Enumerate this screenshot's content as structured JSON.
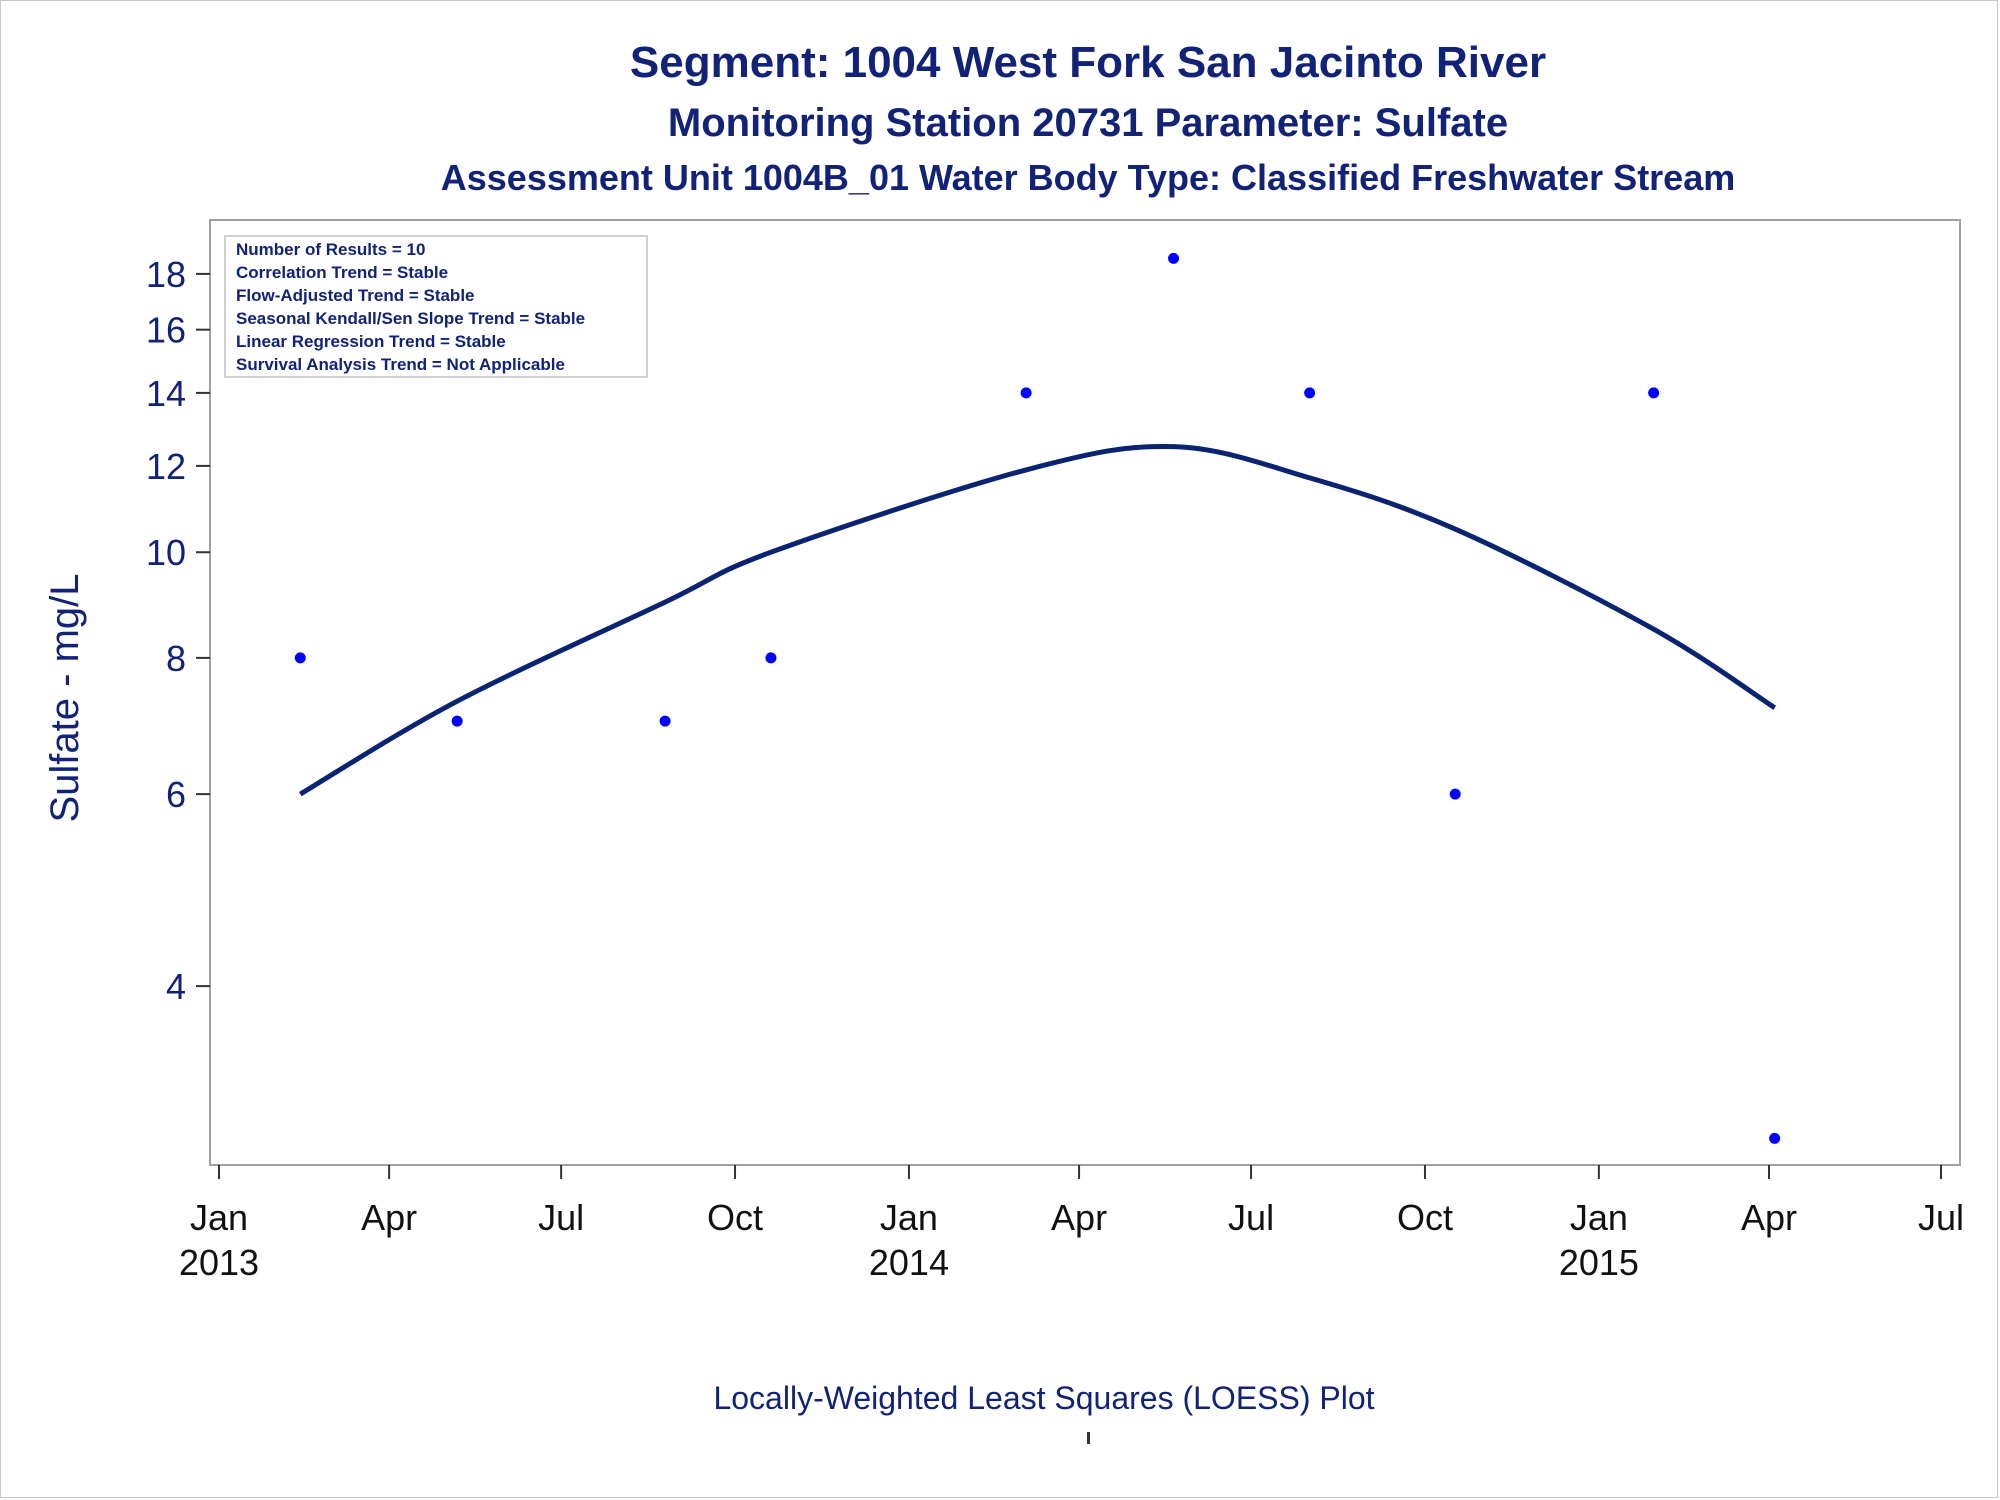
{
  "title_lines": [
    "Segment: 1004  West Fork San Jacinto River",
    "Monitoring Station 20731 Parameter: Sulfate",
    "Assessment Unit 1004B_01   Water Body Type: Classified Freshwater Stream"
  ],
  "footnote": "Locally-Weighted Least Squares (LOESS) Plot",
  "legend_box": [
    "Number of Results = 10",
    "Correlation Trend = Stable",
    "Flow-Adjusted Trend = Stable",
    "Seasonal Kendall/Sen Slope Trend = Stable",
    "Linear Regression Trend = Stable",
    "Survival Analysis Trend = Not Applicable"
  ],
  "colors": {
    "text": "#112277",
    "points": "#0000ff",
    "curve": "#0a2472",
    "axis": "#a0a0a0"
  },
  "chart_data": {
    "type": "scatter",
    "title": "Segment: 1004  West Fork San Jacinto River",
    "ylabel": "Sulfate - mg/L",
    "xlabel": "",
    "y_scale": "log",
    "ylim": [
      2.8,
      19.5
    ],
    "yticks": [
      4,
      6,
      8,
      10,
      12,
      14,
      16,
      18
    ],
    "xlim": [
      "2013-01-01",
      "2015-07-01"
    ],
    "xticks": [
      {
        "date": "2013-01-01",
        "label": "Jan",
        "year": "2013"
      },
      {
        "date": "2013-04-01",
        "label": "Apr",
        "year": ""
      },
      {
        "date": "2013-07-01",
        "label": "Jul",
        "year": ""
      },
      {
        "date": "2013-10-01",
        "label": "Oct",
        "year": ""
      },
      {
        "date": "2014-01-01",
        "label": "Jan",
        "year": "2014"
      },
      {
        "date": "2014-04-01",
        "label": "Apr",
        "year": ""
      },
      {
        "date": "2014-07-01",
        "label": "Jul",
        "year": ""
      },
      {
        "date": "2014-10-01",
        "label": "Oct",
        "year": ""
      },
      {
        "date": "2015-01-01",
        "label": "Jan",
        "year": "2015"
      },
      {
        "date": "2015-04-01",
        "label": "Apr",
        "year": ""
      },
      {
        "date": "2015-07-01",
        "label": "Jul",
        "year": ""
      }
    ],
    "points": [
      {
        "x": "2013-02-13",
        "y": 8
      },
      {
        "x": "2013-05-07",
        "y": 7
      },
      {
        "x": "2013-08-25",
        "y": 7
      },
      {
        "x": "2013-10-20",
        "y": 8
      },
      {
        "x": "2014-03-04",
        "y": 14
      },
      {
        "x": "2014-05-21",
        "y": 18.6
      },
      {
        "x": "2014-08-01",
        "y": 14
      },
      {
        "x": "2014-10-17",
        "y": 6
      },
      {
        "x": "2015-01-30",
        "y": 14
      },
      {
        "x": "2015-04-04",
        "y": 2.9
      }
    ],
    "loess_curve": [
      {
        "x": "2013-02-13",
        "y": 6.0
      },
      {
        "x": "2013-05-07",
        "y": 7.3
      },
      {
        "x": "2013-08-25",
        "y": 9.0
      },
      {
        "x": "2013-10-20",
        "y": 10.0
      },
      {
        "x": "2014-03-04",
        "y": 11.9
      },
      {
        "x": "2014-05-21",
        "y": 12.5
      },
      {
        "x": "2014-08-01",
        "y": 11.7
      },
      {
        "x": "2014-10-17",
        "y": 10.5
      },
      {
        "x": "2015-01-30",
        "y": 8.5
      },
      {
        "x": "2015-04-04",
        "y": 7.2
      }
    ]
  }
}
